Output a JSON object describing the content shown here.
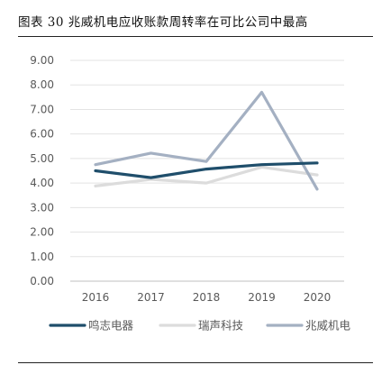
{
  "caption": {
    "label": "图表",
    "number": "30",
    "title": "兆威机电应收账款周转率在可比公司中最高"
  },
  "chart_data": {
    "type": "line",
    "categories": [
      "2016",
      "2017",
      "2018",
      "2019",
      "2020"
    ],
    "y_ticks": [
      "0.00",
      "1.00",
      "2.00",
      "3.00",
      "4.00",
      "5.00",
      "6.00",
      "7.00",
      "8.00",
      "9.00"
    ],
    "ylim": [
      0,
      9
    ],
    "grid": true,
    "legend_position": "bottom",
    "series": [
      {
        "name": "鸣志电器",
        "color": "#1F4E6B",
        "values": [
          4.5,
          4.22,
          4.57,
          4.75,
          4.82
        ]
      },
      {
        "name": "瑞声科技",
        "color": "#DCDCDC",
        "values": [
          3.88,
          4.15,
          4.0,
          4.65,
          4.33
        ]
      },
      {
        "name": "兆威机电",
        "color": "#A4B0C2",
        "values": [
          4.75,
          5.22,
          4.88,
          7.7,
          3.75
        ]
      }
    ]
  }
}
